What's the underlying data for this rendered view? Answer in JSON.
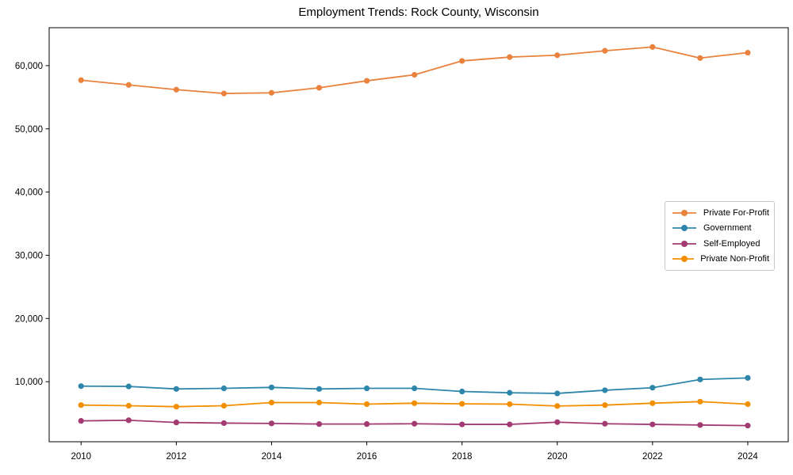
{
  "figure": {
    "background": "#ffffff",
    "axes_color": "#000000",
    "tick_label_color": "#000000"
  },
  "chart_data": {
    "type": "line",
    "title": "Employment Trends: Rock County, Wisconsin",
    "xlabel": "",
    "ylabel": "",
    "grid": false,
    "legend_position": "center-right",
    "x": [
      2010,
      2011,
      2012,
      2013,
      2014,
      2015,
      2016,
      2017,
      2018,
      2019,
      2020,
      2021,
      2022,
      2023,
      2024
    ],
    "series": [
      {
        "name": "Private For-Profit",
        "color": "#E8823D",
        "values": [
          57700,
          56950,
          56200,
          55600,
          55700,
          56500,
          57600,
          58550,
          60750,
          61350,
          61650,
          62350,
          62950,
          61200,
          62050
        ]
      },
      {
        "name": "Government",
        "color": "#2E86AB",
        "values": [
          9300,
          9250,
          8850,
          8950,
          9100,
          8850,
          8950,
          8950,
          8450,
          8250,
          8150,
          8650,
          9050,
          10350,
          10600
        ]
      },
      {
        "name": "Self-Employed",
        "color": "#A23B72",
        "values": [
          3800,
          3900,
          3550,
          3450,
          3400,
          3300,
          3300,
          3350,
          3250,
          3250,
          3600,
          3350,
          3250,
          3150,
          3050
        ]
      },
      {
        "name": "Private Non-Profit",
        "color": "#F18F01",
        "values": [
          6300,
          6200,
          6050,
          6200,
          6700,
          6700,
          6450,
          6600,
          6500,
          6450,
          6150,
          6300,
          6600,
          6850,
          6450
        ]
      }
    ],
    "xticks": {
      "values": [
        2010,
        2012,
        2014,
        2016,
        2018,
        2020,
        2022,
        2024
      ],
      "labels": [
        "2010",
        "2012",
        "2014",
        "2016",
        "2018",
        "2020",
        "2022",
        "2024"
      ]
    },
    "yticks": {
      "values": [
        10000,
        20000,
        30000,
        40000,
        50000,
        60000
      ],
      "labels": [
        "10,000",
        "20,000",
        "30,000",
        "40,000",
        "50,000",
        "60,000"
      ]
    },
    "xlim": [
      2009.33,
      2024.85
    ],
    "ylim": [
      500,
      66000
    ]
  }
}
